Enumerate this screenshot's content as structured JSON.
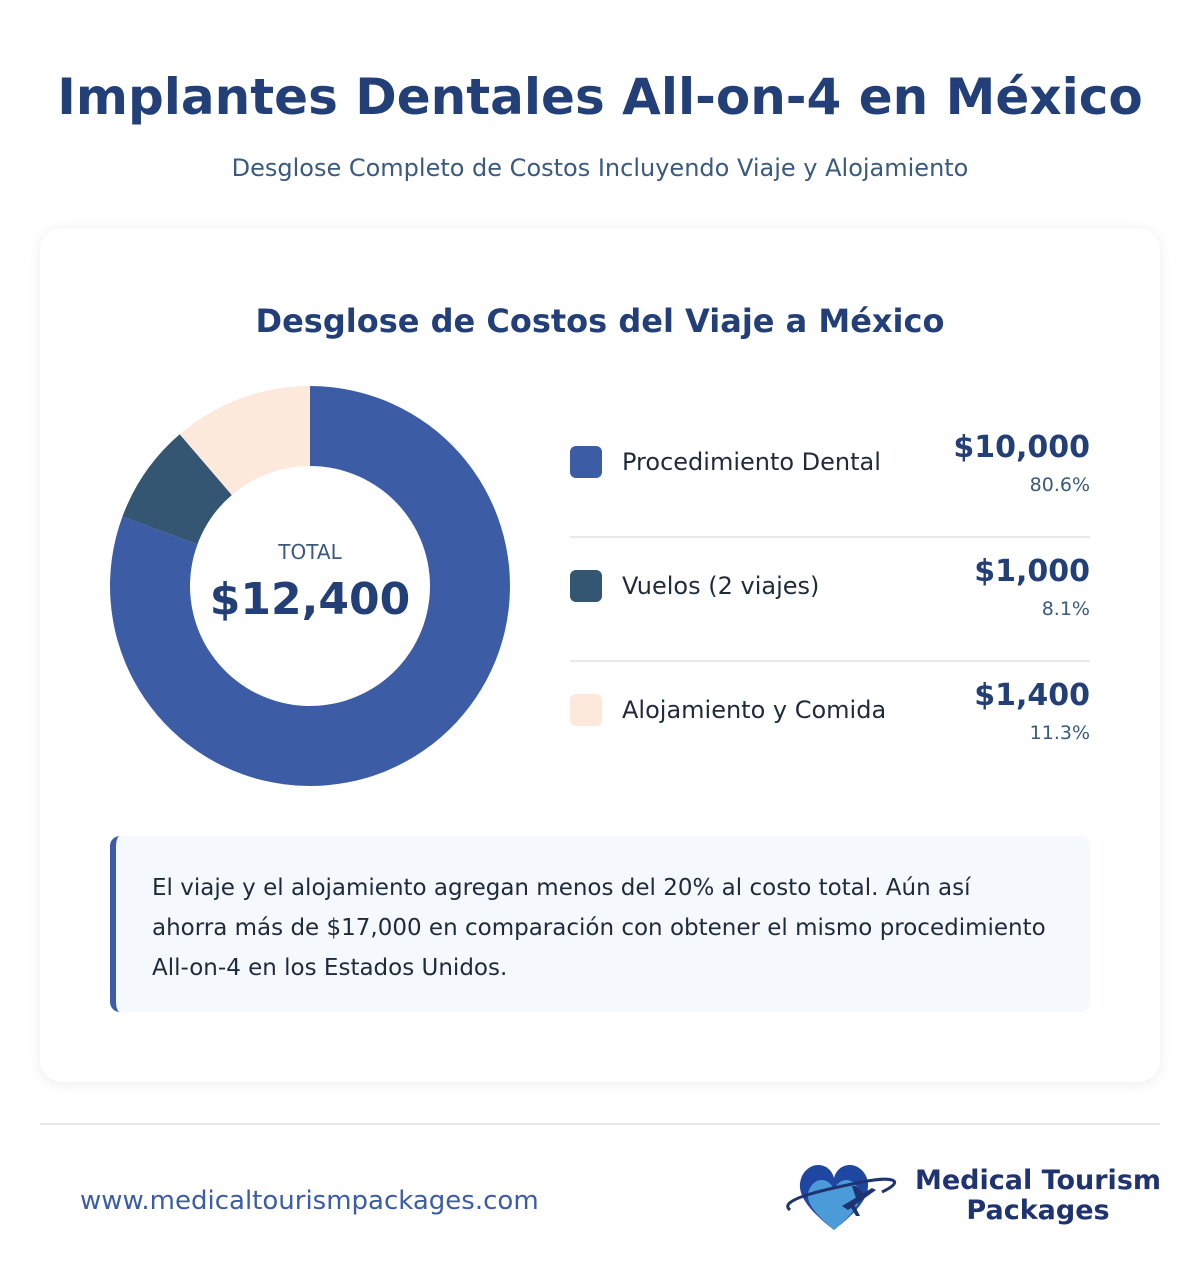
{
  "header": {
    "title": "Implantes Dentales All-on-4 en México",
    "subtitle": "Desglose Completo de Costos Incluyendo Viaje y Alojamiento"
  },
  "chart_data": {
    "type": "pie",
    "title": "Desglose de Costos del Viaje a México",
    "center_label": "TOTAL",
    "center_value": "$12,400",
    "slices": [
      {
        "label": "Procedimiento Dental",
        "value": 10000,
        "amount": "$10,000",
        "percent": "80.6%",
        "color": "#3c5da6"
      },
      {
        "label": "Vuelos (2 viajes)",
        "value": 1000,
        "amount": "$1,000",
        "percent": "8.1%",
        "color": "#345673"
      },
      {
        "label": "Alojamiento y Comida",
        "value": 1400,
        "amount": "$1,400",
        "percent": "11.3%",
        "color": "#fde8dc"
      }
    ]
  },
  "note": "El viaje y el alojamiento agregan menos del 20% al costo total. Aún así ahorra más de $17,000 en comparación con obtener el mismo procedimiento All-on-4 en los Estados Unidos.",
  "footer": {
    "url": "www.medicaltourismpackages.com",
    "logo_line1": "Medical Tourism",
    "logo_line2": "Packages"
  }
}
